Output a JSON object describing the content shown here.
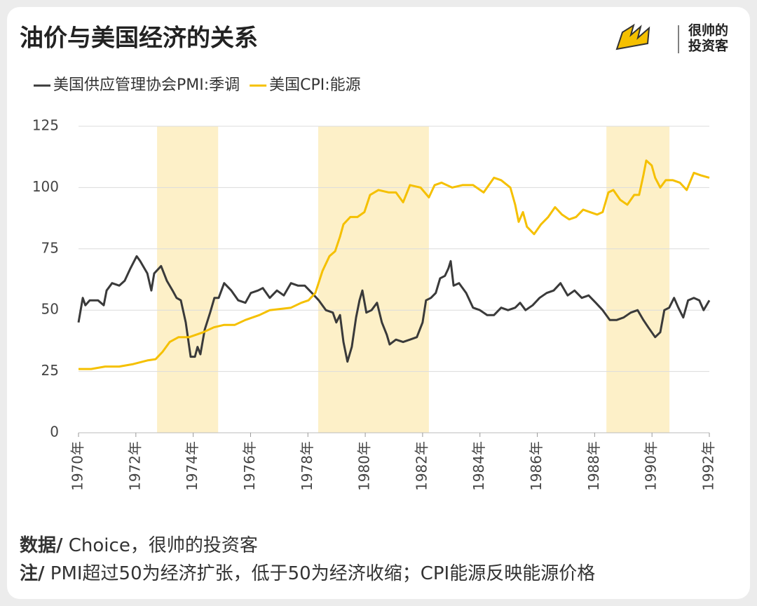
{
  "chart_data": {
    "type": "line",
    "title": "油价与美国经济的关系",
    "xlim": [
      1970,
      1992
    ],
    "xticks": [
      {
        "value": 1970,
        "label": "1970年"
      },
      {
        "value": 1972,
        "label": "1972年"
      },
      {
        "value": 1974,
        "label": "1974年"
      },
      {
        "value": 1976,
        "label": "1976年"
      },
      {
        "value": 1978,
        "label": "1978年"
      },
      {
        "value": 1980,
        "label": "1980年"
      },
      {
        "value": 1982,
        "label": "1982年"
      },
      {
        "value": 1984,
        "label": "1984年"
      },
      {
        "value": 1986,
        "label": "1986年"
      },
      {
        "value": 1988,
        "label": "1988年"
      },
      {
        "value": 1990,
        "label": "1990年"
      },
      {
        "value": 1992,
        "label": "1992年"
      }
    ],
    "ylim": [
      0,
      125
    ],
    "yticks": [
      0,
      25,
      50,
      75,
      100,
      125
    ],
    "grid": true,
    "highlight_ranges": [
      [
        1972.74,
        1974.87
      ],
      [
        1978.36,
        1982.22
      ],
      [
        1988.41,
        1990.61
      ]
    ],
    "highlight_color": "#fdf0c8",
    "series": [
      {
        "name": "美国供应管理协会PMI:季调",
        "color": "#3a3a3a",
        "x": [
          1970.0,
          1970.15,
          1970.24,
          1970.39,
          1970.68,
          1970.88,
          1970.98,
          1971.17,
          1971.42,
          1971.61,
          1971.81,
          1972.03,
          1972.15,
          1972.4,
          1972.54,
          1972.64,
          1972.88,
          1973.08,
          1973.28,
          1973.42,
          1973.57,
          1973.74,
          1973.91,
          1974.06,
          1974.15,
          1974.25,
          1974.4,
          1974.59,
          1974.74,
          1974.89,
          1975.08,
          1975.33,
          1975.57,
          1975.82,
          1976.01,
          1976.26,
          1976.43,
          1976.67,
          1976.92,
          1977.16,
          1977.41,
          1977.65,
          1977.89,
          1978.14,
          1978.38,
          1978.63,
          1978.87,
          1978.99,
          1979.12,
          1979.24,
          1979.38,
          1979.53,
          1979.68,
          1979.8,
          1979.9,
          1980.04,
          1980.22,
          1980.41,
          1980.58,
          1980.75,
          1980.85,
          1981.07,
          1981.32,
          1981.56,
          1981.8,
          1982.0,
          1982.12,
          1982.29,
          1982.46,
          1982.61,
          1982.78,
          1982.9,
          1982.98,
          1983.08,
          1983.27,
          1983.52,
          1983.76,
          1984.0,
          1984.25,
          1984.49,
          1984.74,
          1984.98,
          1985.23,
          1985.4,
          1985.59,
          1985.84,
          1986.08,
          1986.33,
          1986.57,
          1986.81,
          1987.06,
          1987.3,
          1987.55,
          1987.79,
          1988.04,
          1988.28,
          1988.53,
          1988.77,
          1989.01,
          1989.26,
          1989.5,
          1989.7,
          1989.87,
          1990.11,
          1990.29,
          1990.43,
          1990.6,
          1990.77,
          1990.92,
          1991.09,
          1991.26,
          1991.46,
          1991.65,
          1991.8,
          1992.0
        ],
        "values": [
          45,
          55,
          52,
          54,
          54,
          52,
          58,
          61,
          60,
          62,
          67,
          72,
          70,
          65,
          58,
          65,
          68,
          62,
          58,
          55,
          54,
          45,
          31,
          31,
          35,
          32,
          42,
          49,
          55,
          55,
          61,
          58,
          54,
          53,
          57,
          58,
          59,
          55,
          58,
          56,
          61,
          60,
          60,
          57,
          54,
          50,
          49,
          45,
          48,
          37,
          29,
          35,
          47,
          54,
          58,
          49,
          50,
          53,
          45,
          40,
          36,
          38,
          37,
          38,
          39,
          45,
          54,
          55,
          57,
          63,
          64,
          67,
          70,
          60,
          61,
          57,
          51,
          50,
          48,
          48,
          51,
          50,
          51,
          53,
          50,
          52,
          55,
          57,
          58,
          61,
          56,
          58,
          55,
          56,
          53,
          50,
          46,
          46,
          47,
          49,
          50,
          46,
          43,
          39,
          41,
          50,
          51,
          55,
          51,
          47,
          54,
          55,
          54,
          50,
          54
        ]
      },
      {
        "name": "美国CPI:能源",
        "color": "#f5c000",
        "x": [
          1970.0,
          1970.44,
          1970.93,
          1971.42,
          1971.91,
          1972.4,
          1972.69,
          1972.93,
          1973.18,
          1973.49,
          1973.86,
          1974.35,
          1974.72,
          1975.08,
          1975.45,
          1975.82,
          1976.31,
          1976.67,
          1977.04,
          1977.41,
          1977.77,
          1978.02,
          1978.26,
          1978.51,
          1978.75,
          1978.95,
          1979.12,
          1979.24,
          1979.48,
          1979.73,
          1979.97,
          1980.17,
          1980.46,
          1980.83,
          1981.07,
          1981.32,
          1981.56,
          1981.93,
          1982.22,
          1982.42,
          1982.66,
          1983.03,
          1983.39,
          1983.76,
          1984.13,
          1984.49,
          1984.74,
          1985.06,
          1985.23,
          1985.35,
          1985.5,
          1985.64,
          1985.89,
          1986.13,
          1986.38,
          1986.62,
          1986.86,
          1987.11,
          1987.35,
          1987.6,
          1987.84,
          1988.09,
          1988.28,
          1988.48,
          1988.65,
          1988.89,
          1989.14,
          1989.38,
          1989.55,
          1989.7,
          1989.8,
          1989.99,
          1990.11,
          1990.29,
          1990.48,
          1990.73,
          1990.97,
          1991.21,
          1991.46,
          1991.7,
          1992.0
        ],
        "values": [
          26,
          26,
          27,
          27,
          28,
          29.5,
          30,
          33,
          37,
          39,
          39,
          41,
          43,
          44,
          44,
          46,
          48,
          50,
          50.5,
          51,
          53,
          54,
          57,
          66,
          72,
          74,
          80,
          85,
          88,
          88,
          90,
          97,
          99,
          98,
          98,
          94,
          101,
          100,
          96,
          101,
          102,
          100,
          101,
          101,
          98,
          104,
          103,
          100,
          93,
          86,
          90,
          84,
          81,
          85,
          88,
          92,
          89,
          87,
          88,
          91,
          90,
          89,
          90,
          98,
          99,
          95,
          93,
          97,
          97,
          105,
          111,
          109,
          104,
          100,
          103,
          103,
          102,
          99,
          106,
          105,
          104
        ]
      }
    ]
  },
  "brand": {
    "line1": "很帅的",
    "line2": "投资客"
  },
  "notes": [
    {
      "label": "数据/",
      "text": " Choice，很帅的投资客"
    },
    {
      "label": "注/",
      "text": " PMI超过50为经济扩张，低于50为经济收缩；CPI能源反映能源价格"
    }
  ]
}
